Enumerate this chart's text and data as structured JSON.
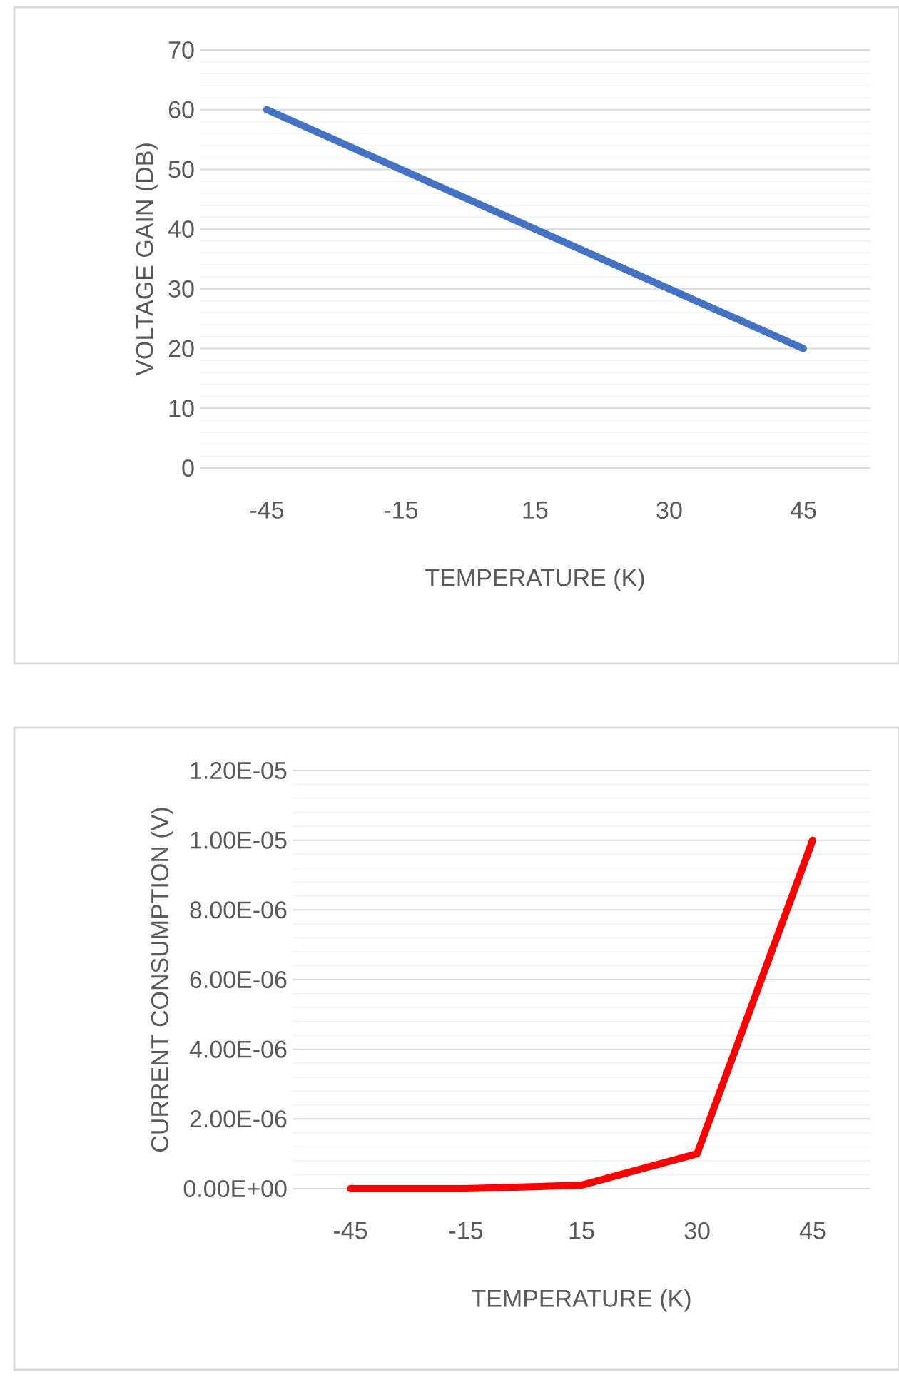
{
  "chart_data": [
    {
      "type": "line",
      "categories": [
        "-45",
        "-15",
        "15",
        "30",
        "45"
      ],
      "xlabel": "TEMPERATURE (K)",
      "ylabel": "VOLTAGE GAIN (DB)",
      "series": [
        {
          "color": "#4472c4",
          "values": [
            60,
            50,
            40,
            30,
            20
          ]
        }
      ],
      "ylim": [
        0,
        70
      ],
      "yticks": [
        0,
        10,
        20,
        30,
        40,
        50,
        60,
        70
      ],
      "grid": "y"
    },
    {
      "type": "line",
      "categories": [
        "-45",
        "-15",
        "15",
        "30",
        "45"
      ],
      "xlabel": "TEMPERATURE (K)",
      "ylabel": "CURRENT CONSUMPTION (V)",
      "series": [
        {
          "color": "#ff0000",
          "values": [
            0,
            0,
            1e-07,
            1e-06,
            1e-05
          ]
        }
      ],
      "ylim": [
        0,
        1.2e-05
      ],
      "yticks": [
        {
          "value": 0,
          "label": "0.00E+00"
        },
        {
          "value": 2e-06,
          "label": "2.00E-06"
        },
        {
          "value": 4e-06,
          "label": "4.00E-06"
        },
        {
          "value": 6e-06,
          "label": "6.00E-06"
        },
        {
          "value": 8e-06,
          "label": "8.00E-06"
        },
        {
          "value": 1e-05,
          "label": "1.00E-05"
        },
        {
          "value": 1.2e-05,
          "label": "1.20E-05"
        }
      ],
      "grid": "y"
    }
  ]
}
